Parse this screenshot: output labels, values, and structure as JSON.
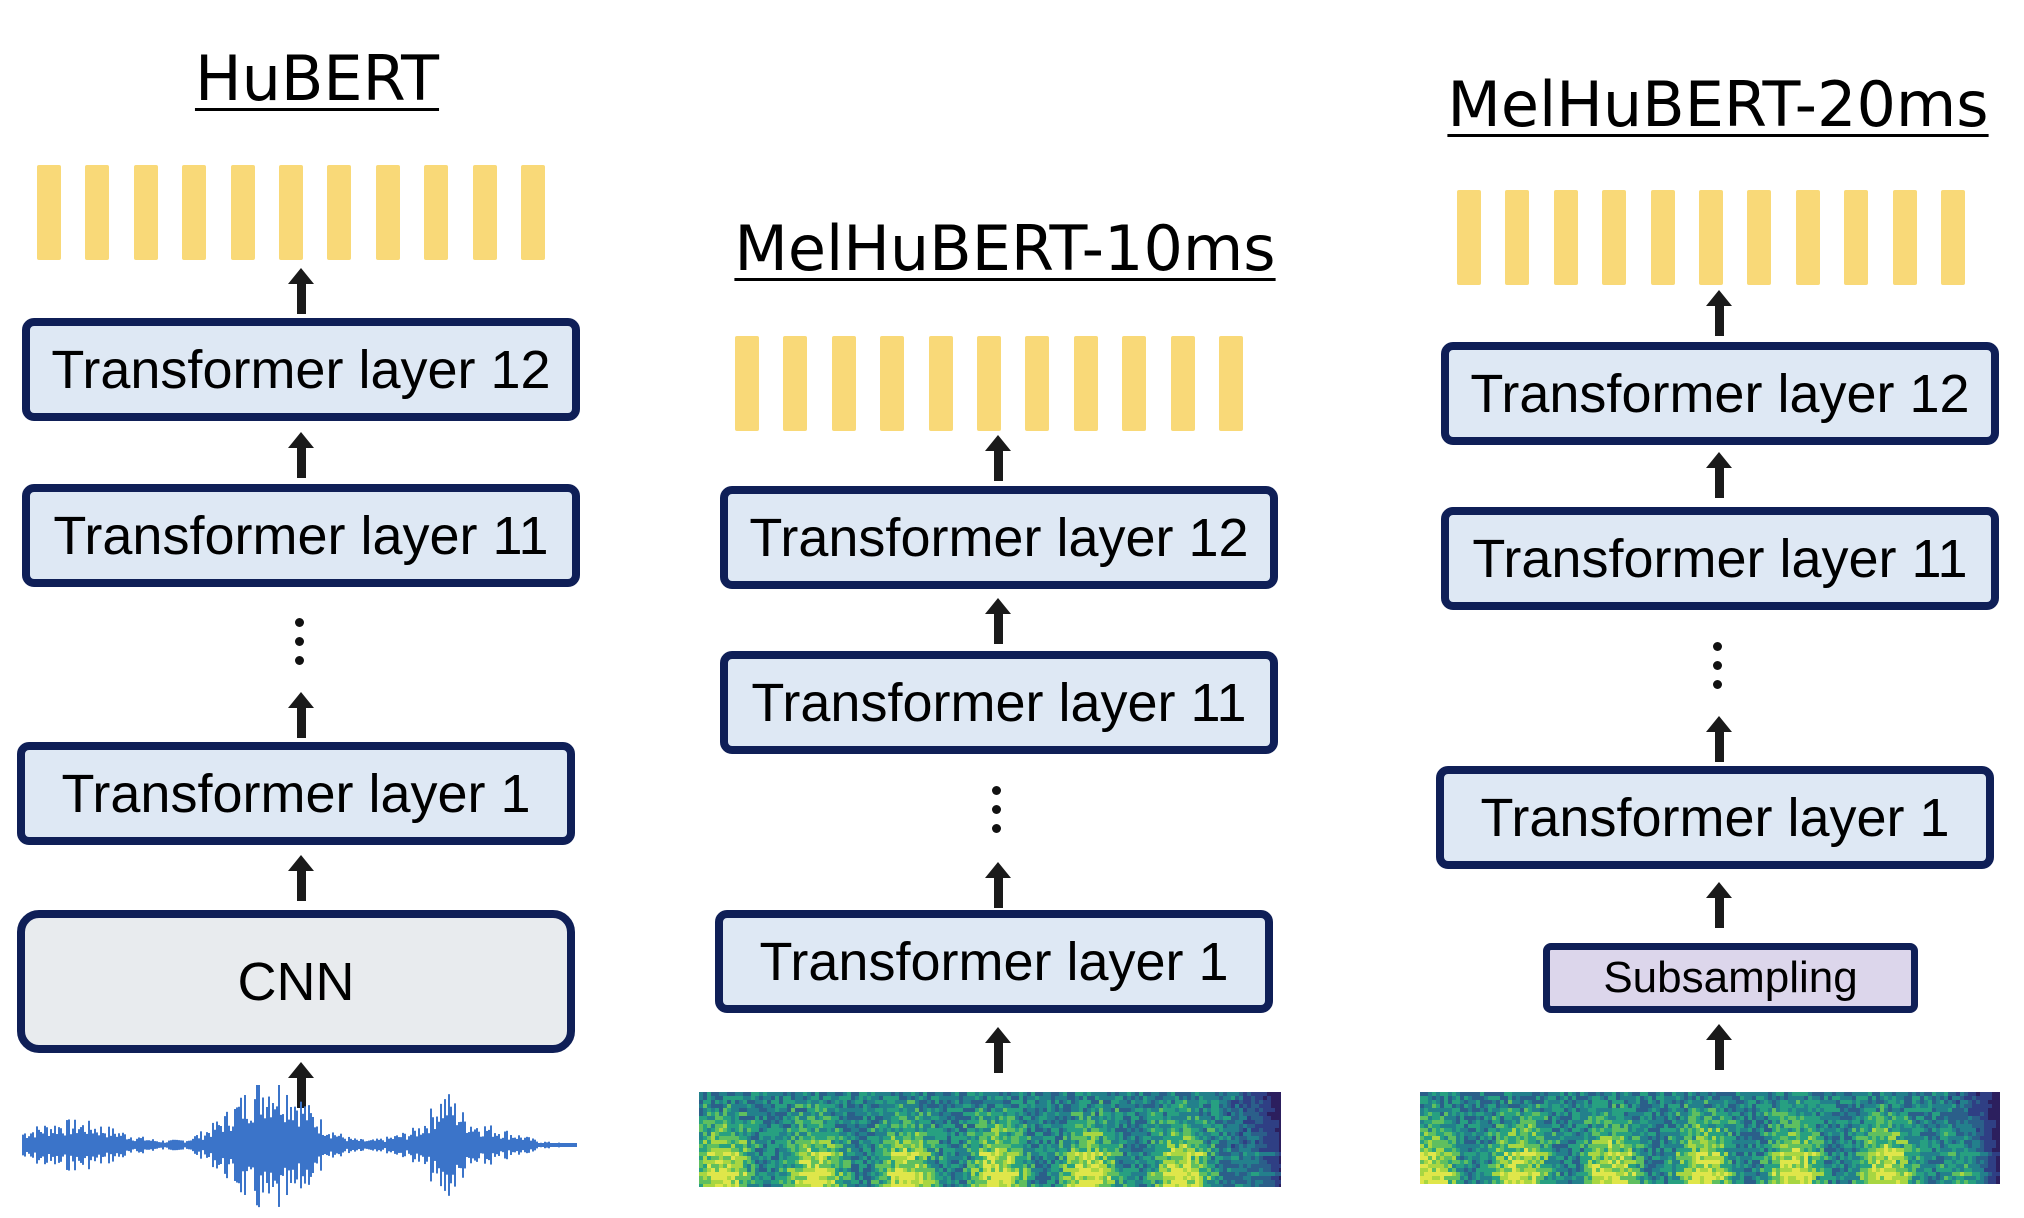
{
  "columns": [
    {
      "title": "HuBERT",
      "token_count": 11,
      "layers": [
        "Transformer layer 12",
        "Transformer layer 11",
        "Transformer layer 1"
      ],
      "front_end": "CNN",
      "input": "waveform"
    },
    {
      "title": "MelHuBERT-10ms",
      "token_count": 11,
      "layers": [
        "Transformer layer 12",
        "Transformer layer 11",
        "Transformer layer 1"
      ],
      "input": "mel-spectrogram"
    },
    {
      "title": "MelHuBERT-20ms",
      "token_count": 11,
      "layers": [
        "Transformer layer 12",
        "Transformer layer 11",
        "Transformer layer 1"
      ],
      "front_end": "Subsampling",
      "input": "mel-spectrogram"
    }
  ],
  "colors": {
    "token": "#f9d978",
    "layer_fill": "#dee8f4",
    "layer_border": "#0f1f57",
    "cnn_fill": "#e8ebee",
    "subsampling_fill": "#dcd6eb",
    "waveform": "#3b74c9"
  }
}
